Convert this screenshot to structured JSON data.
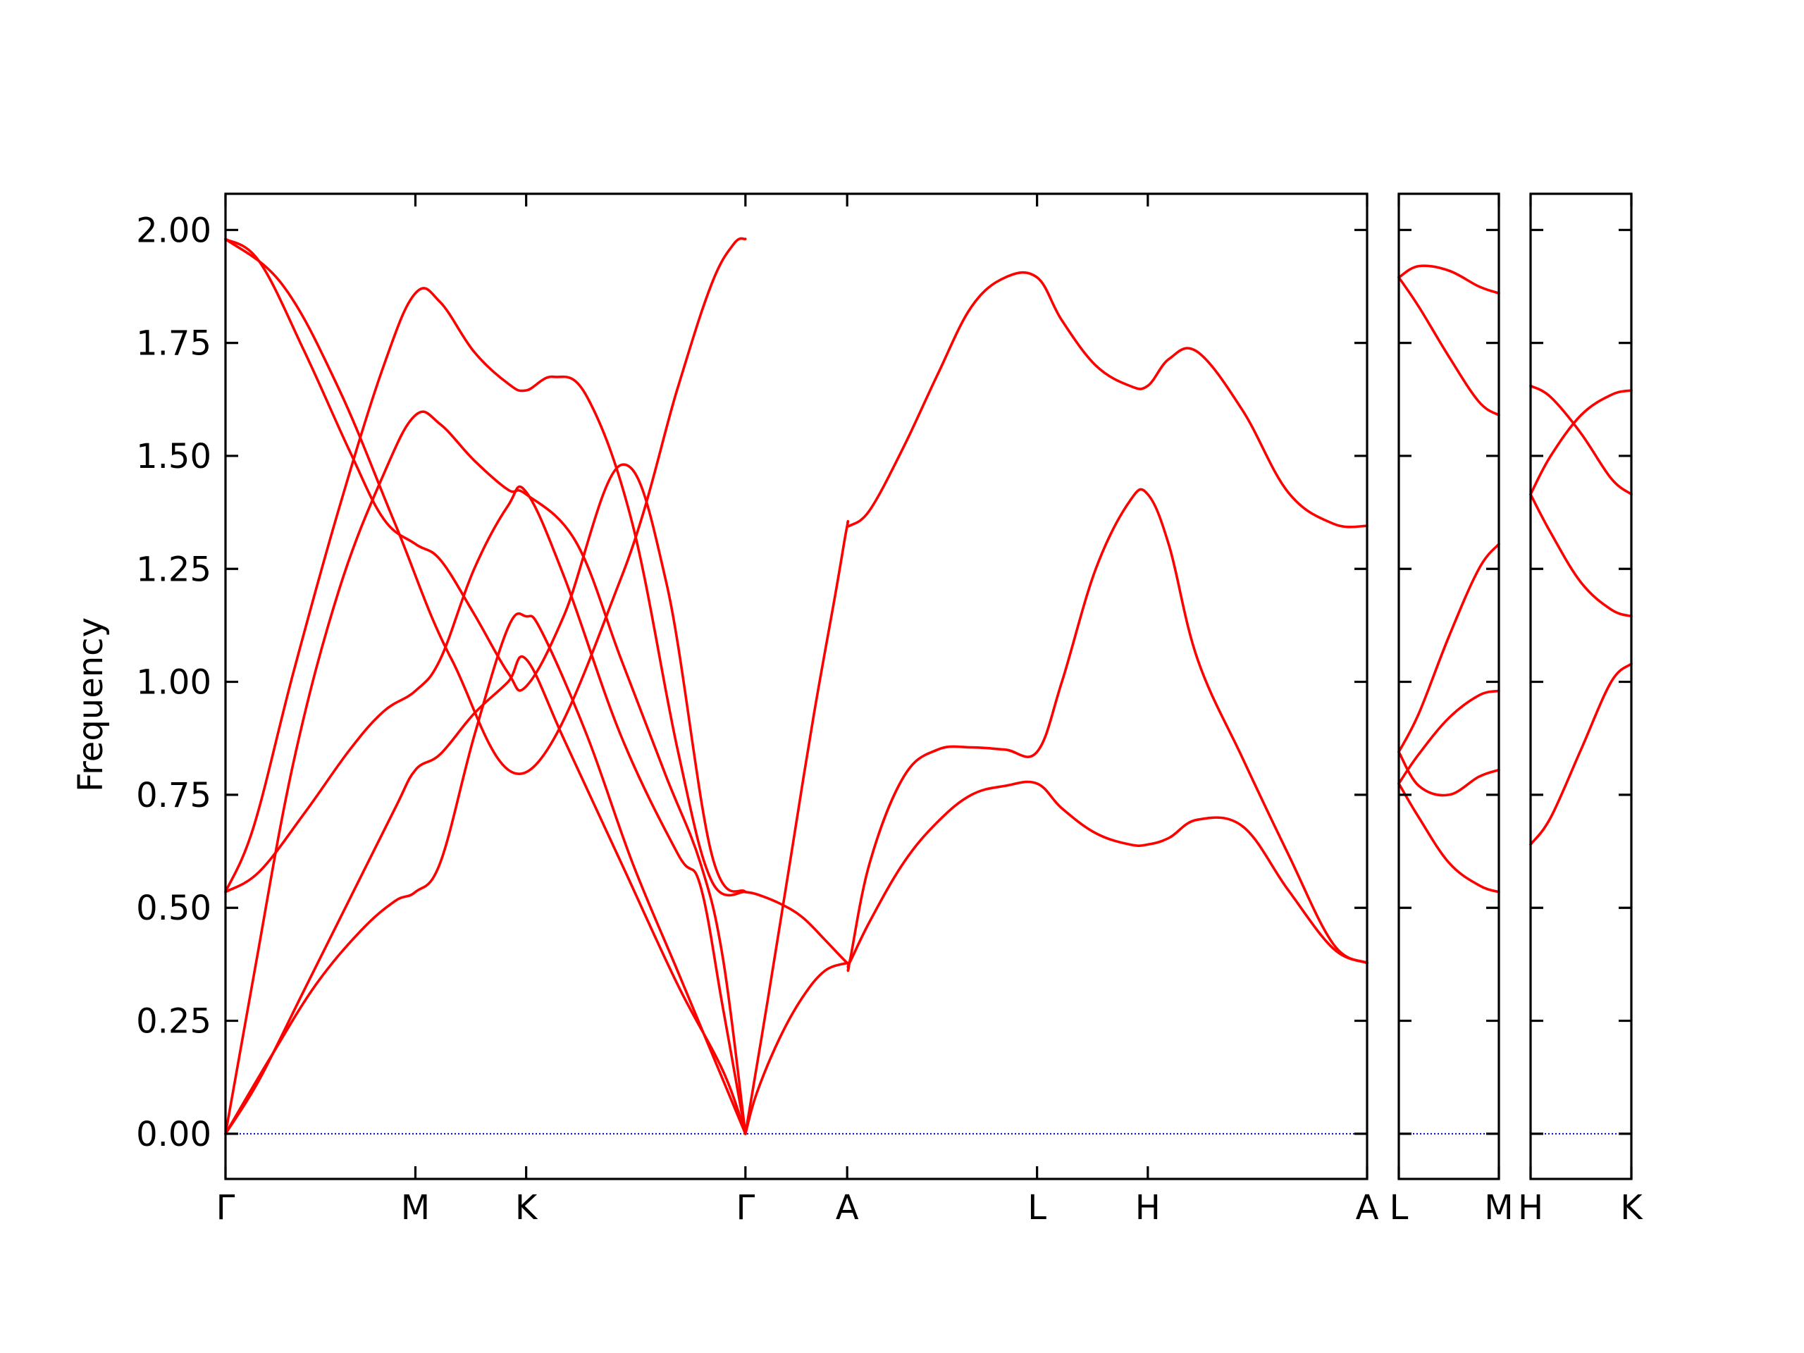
{
  "chart_data": {
    "type": "line",
    "title": "",
    "ylabel": "Frequency",
    "ylim": [
      -0.1,
      2.08
    ],
    "yticks": [
      "0.00",
      "0.25",
      "0.50",
      "0.75",
      "1.00",
      "1.25",
      "1.50",
      "1.75",
      "2.00"
    ],
    "ytick_values": [
      0,
      0.25,
      0.5,
      0.75,
      1.0,
      1.25,
      1.5,
      1.75,
      2.0
    ],
    "grid": false,
    "line_color": "#ff0000",
    "zero_line_color": "#0000cc",
    "panels": [
      {
        "xlim": [
          0,
          10.1
        ],
        "xticks": [
          {
            "x": 0,
            "label": "Γ"
          },
          {
            "x": 1.68,
            "label": "M"
          },
          {
            "x": 2.66,
            "label": "K"
          },
          {
            "x": 4.6,
            "label": "Γ"
          },
          {
            "x": 5.5,
            "label": "A"
          },
          {
            "x": 7.18,
            "label": "L"
          },
          {
            "x": 8.16,
            "label": "H"
          },
          {
            "x": 10.1,
            "label": "A"
          }
        ],
        "series": [
          {
            "x": [
              0,
              0.3,
              0.7,
              1.1,
              1.4,
              1.68,
              1.9,
              2.2,
              2.5,
              2.66,
              3.0,
              3.5,
              4.0,
              4.2,
              4.4,
              4.6
            ],
            "y": [
              0.535,
              0.58,
              0.71,
              0.85,
              0.935,
              0.98,
              1.05,
              1.25,
              1.39,
              1.42,
              1.23,
              0.88,
              0.62,
              0.55,
              0.28,
              0
            ]
          },
          {
            "x": [
              0,
              0.4,
              0.8,
              1.2,
              1.5,
              1.68,
              1.9,
              2.2,
              2.5,
              2.66,
              2.8,
              3.2,
              3.6,
              4.0,
              4.3,
              4.6
            ],
            "y": [
              0,
              0.17,
              0.33,
              0.45,
              0.515,
              0.535,
              0.6,
              0.88,
              1.12,
              1.145,
              1.11,
              0.88,
              0.6,
              0.36,
              0.18,
              0
            ]
          },
          {
            "x": [
              0,
              0.3,
              0.7,
              1.1,
              1.5,
              1.68,
              1.9,
              2.2,
              2.5,
              2.66,
              3.0,
              3.5,
              4.0,
              4.4,
              4.6
            ],
            "y": [
              0,
              0.12,
              0.32,
              0.52,
              0.72,
              0.805,
              0.84,
              0.93,
              1.0,
              1.05,
              0.87,
              0.6,
              0.33,
              0.14,
              0
            ]
          },
          {
            "x": [
              0,
              0.25,
              0.6,
              1.0,
              1.4,
              1.68,
              1.9,
              2.2,
              2.5,
              2.66,
              3.1,
              3.5,
              3.9,
              4.2,
              4.4,
              4.6
            ],
            "y": [
              0,
              0.35,
              0.82,
              1.2,
              1.46,
              1.59,
              1.57,
              1.49,
              1.425,
              1.415,
              1.31,
              1.05,
              0.79,
              0.6,
              0.39,
              0
            ]
          },
          {
            "x": [
              0,
              0.25,
              0.6,
              1.0,
              1.4,
              1.68,
              1.9,
              2.2,
              2.5,
              2.66,
              2.9,
              3.2,
              3.6,
              4.0,
              4.3,
              4.6
            ],
            "y": [
              0.535,
              0.68,
              1.02,
              1.38,
              1.7,
              1.86,
              1.84,
              1.73,
              1.66,
              1.645,
              1.675,
              1.63,
              1.35,
              0.85,
              0.56,
              0.535
            ]
          },
          {
            "x": [
              0,
              0.3,
              0.7,
              1.1,
              1.4,
              1.68,
              1.9,
              2.2,
              2.5,
              2.66,
              3.0,
              3.5,
              3.9,
              4.3,
              4.6
            ],
            "y": [
              1.98,
              1.93,
              1.73,
              1.51,
              1.36,
              1.305,
              1.27,
              1.15,
              1.02,
              0.99,
              1.15,
              1.48,
              1.22,
              0.62,
              0.535
            ]
          },
          {
            "x": [
              4.6,
              4.7,
              4.9,
              5.1,
              5.3,
              5.5,
              5.52,
              5.7,
              6.0,
              6.3,
              6.6,
              6.9,
              7.18,
              7.4,
              7.7,
              8.0,
              8.16,
              8.35,
              8.6,
              9.0,
              9.4,
              9.8,
              10.1
            ],
            "y": [
              0,
              0.09,
              0.21,
              0.3,
              0.36,
              0.378,
              0.378,
              0.6,
              0.79,
              0.85,
              0.855,
              0.85,
              0.845,
              1.0,
              1.25,
              1.4,
              1.415,
              1.3,
              1.05,
              0.83,
              0.62,
              0.42,
              0.378
            ]
          },
          {
            "x": [
              4.6,
              4.7,
              4.9,
              5.1,
              5.3,
              5.5,
              5.52,
              5.7,
              6.0,
              6.3,
              6.6,
              6.9,
              7.18,
              7.4,
              7.7,
              8.0,
              8.16,
              8.35,
              8.6,
              9.0,
              9.4,
              9.8,
              10.1
            ],
            "y": [
              0.535,
              0.53,
              0.51,
              0.48,
              0.43,
              0.378,
              0.378,
              0.47,
              0.6,
              0.69,
              0.75,
              0.77,
              0.775,
              0.72,
              0.665,
              0.64,
              0.64,
              0.655,
              0.695,
              0.68,
              0.54,
              0.41,
              0.378
            ]
          },
          {
            "x": [
              4.6,
              4.8,
              5.0,
              5.2,
              5.4,
              5.5,
              5.52,
              5.7,
              6.0,
              6.3,
              6.6,
              6.9,
              7.18,
              7.4,
              7.7,
              8.0,
              8.16,
              8.35,
              8.6,
              9.0,
              9.4,
              9.8,
              10.1
            ],
            "y": [
              0,
              0.3,
              0.61,
              0.92,
              1.2,
              1.345,
              1.345,
              1.38,
              1.52,
              1.68,
              1.83,
              1.895,
              1.895,
              1.8,
              1.7,
              1.655,
              1.655,
              1.715,
              1.73,
              1.6,
              1.42,
              1.35,
              1.345
            ]
          },
          {
            "x": [
              0,
              0.5,
              1.0,
              1.5,
              2.0,
              2.66,
              3.5,
              4.0,
              4.3,
              4.5,
              4.6
            ],
            "y": [
              1.98,
              1.88,
              1.65,
              1.35,
              1.05,
              0.8,
              1.23,
              1.65,
              1.88,
              1.97,
              1.98
            ]
          }
        ]
      },
      {
        "xlim": [
          0,
          1
        ],
        "xticks": [
          {
            "x": 0,
            "label": "L"
          },
          {
            "x": 1,
            "label": "M"
          }
        ],
        "series": [
          {
            "x": [
              0,
              0.2,
              0.5,
              0.8,
              1.0
            ],
            "y": [
              1.895,
              1.92,
              1.91,
              1.875,
              1.86
            ]
          },
          {
            "x": [
              0,
              0.2,
              0.5,
              0.8,
              1.0
            ],
            "y": [
              1.895,
              1.83,
              1.72,
              1.62,
              1.59
            ]
          },
          {
            "x": [
              0,
              0.2,
              0.5,
              0.8,
              1.0
            ],
            "y": [
              0.845,
              0.93,
              1.1,
              1.25,
              1.305
            ]
          },
          {
            "x": [
              0,
              0.2,
              0.5,
              0.8,
              1.0
            ],
            "y": [
              0.845,
              0.77,
              0.75,
              0.79,
              0.805
            ]
          },
          {
            "x": [
              0,
              0.2,
              0.5,
              0.8,
              1.0
            ],
            "y": [
              0.775,
              0.84,
              0.92,
              0.97,
              0.98
            ]
          },
          {
            "x": [
              0,
              0.2,
              0.5,
              0.8,
              1.0
            ],
            "y": [
              0.775,
              0.7,
              0.6,
              0.55,
              0.535
            ]
          }
        ]
      },
      {
        "xlim": [
          0,
          1
        ],
        "xticks": [
          {
            "x": 0,
            "label": "H"
          },
          {
            "x": 1,
            "label": "K"
          }
        ],
        "series": [
          {
            "x": [
              0,
              0.2,
              0.5,
              0.8,
              1.0
            ],
            "y": [
              1.655,
              1.63,
              1.55,
              1.45,
              1.415
            ]
          },
          {
            "x": [
              0,
              0.2,
              0.5,
              0.8,
              1.0
            ],
            "y": [
              1.415,
              1.5,
              1.59,
              1.635,
              1.645
            ]
          },
          {
            "x": [
              0,
              0.2,
              0.5,
              0.8,
              1.0
            ],
            "y": [
              1.415,
              1.33,
              1.22,
              1.16,
              1.145
            ]
          },
          {
            "x": [
              0,
              0.2,
              0.5,
              0.8,
              1.0
            ],
            "y": [
              0.64,
              0.7,
              0.85,
              1.0,
              1.04
            ]
          }
        ]
      }
    ]
  }
}
